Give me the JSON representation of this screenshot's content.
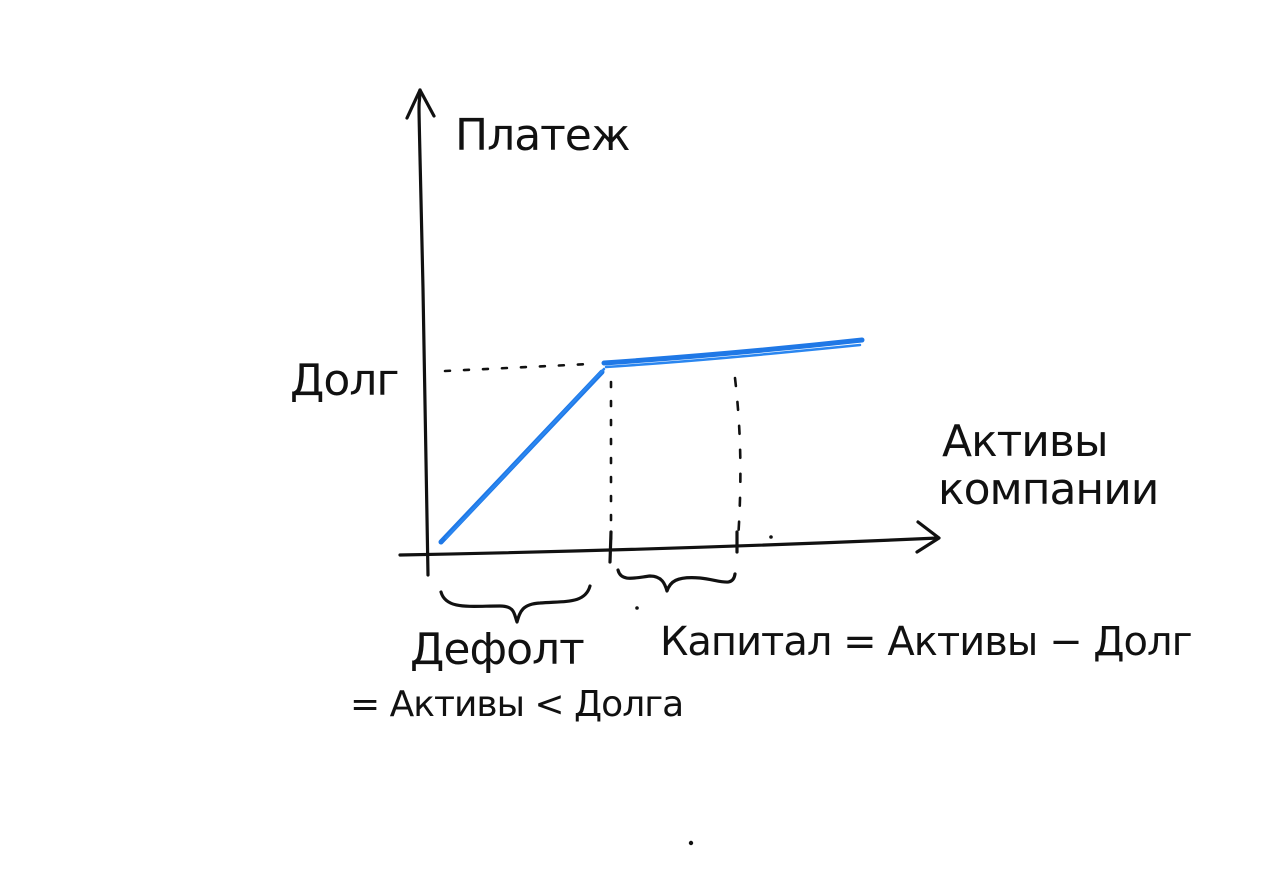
{
  "diagram": {
    "y_axis_label": "Платеж",
    "x_axis_label_line1": "Активы",
    "x_axis_label_line2": "компании",
    "debt_level_label": "Долг",
    "default_label": "Дефолт",
    "default_condition": "= Активы < Долга",
    "equity_label": "Капитал = Активы − Долг"
  },
  "colors": {
    "ink": "#111111",
    "payoff_line": "#1f78e6",
    "background": "#ffffff"
  },
  "payoff_function": {
    "type": "min(Assets, Debt)",
    "segments": [
      "rising-to-debt",
      "flat-at-debt"
    ]
  }
}
